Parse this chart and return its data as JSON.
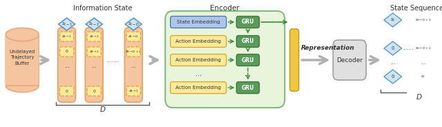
{
  "title_info_state": "Information State",
  "title_encoder": "Encoder",
  "title_representation": "Representation",
  "title_state_seq": "State Sequence",
  "buffer_label": "Undelayed\nTrajectory\nBuffer",
  "D_label": "D",
  "decoder_label": "Decoder",
  "state_embed_label": "State Embedding",
  "action_embed_label": "Action Embedding",
  "gru_label": "GRU",
  "colors": {
    "buffer_fill": "#f5c5a0",
    "buffer_edge": "#e8a87c",
    "info_state_bg": "#f5c5a0",
    "info_state_edge": "#e8a060",
    "diamond_fill": "#cce5f5",
    "diamond_edge": "#5b9abe",
    "action_box_fill": "#fde99a",
    "action_box_edge": "#d4aa30",
    "state_embed_fill": "#aec6ea",
    "state_embed_edge": "#4a7ab5",
    "action_embed_fill": "#fde99a",
    "action_embed_edge": "#d4aa30",
    "gru_fill": "#5a9a5a",
    "gru_edge": "#3d7a3d",
    "encoder_bg": "#e8f5d8",
    "encoder_edge": "#7ab87a",
    "representation_fill": "#f0c840",
    "representation_edge": "#c8a020",
    "decoder_fill": "#e0e0e0",
    "decoder_edge": "#a0a0a0",
    "arrow_gray": "#b0b0b0",
    "green_arrow": "#3a8a3a",
    "text_dark": "#333333",
    "brace_color": "#555555",
    "white": "#ffffff"
  }
}
